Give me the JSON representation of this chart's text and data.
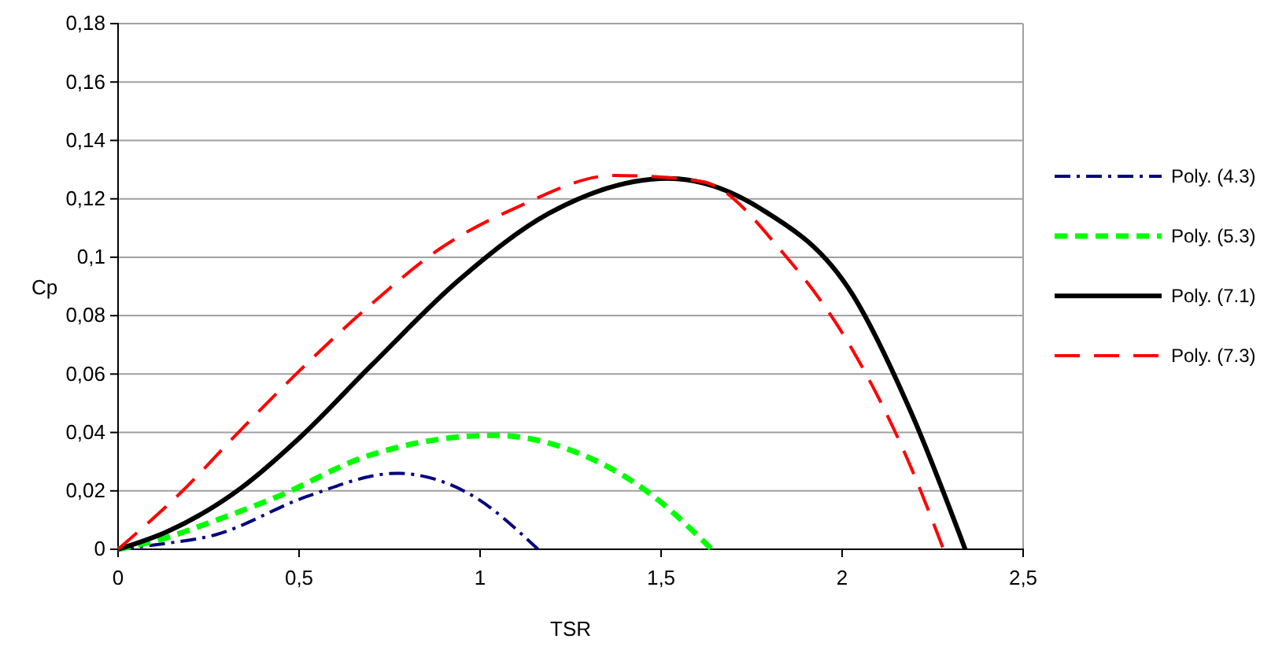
{
  "chart_data": {
    "type": "line",
    "xlabel": "TSR",
    "ylabel": "Cp",
    "xlim": [
      0,
      2.5
    ],
    "xticks": [
      0,
      {
        "value": 0.5,
        "label": "0,5"
      },
      1,
      {
        "value": 1.5,
        "label": "1,5"
      },
      2,
      {
        "value": 2.5,
        "label": "2,5"
      }
    ],
    "ylim": [
      0,
      0.18
    ],
    "yticks": [
      0,
      {
        "value": 0.02,
        "label": "0,02"
      },
      {
        "value": 0.04,
        "label": "0,04"
      },
      {
        "value": 0.06,
        "label": "0,06"
      },
      {
        "value": 0.08,
        "label": "0,08"
      },
      {
        "value": 0.1,
        "label": "0,1"
      },
      {
        "value": 0.12,
        "label": "0,12"
      },
      {
        "value": 0.14,
        "label": "0,14"
      },
      {
        "value": 0.16,
        "label": "0,16"
      },
      {
        "value": 0.18,
        "label": "0,18"
      }
    ],
    "grid": "y",
    "legend": "right",
    "marker": "none",
    "series": [
      {
        "name": "Poly. (4.3)",
        "color": "#000080",
        "line_style": "dashdot",
        "x": [
          0,
          0.1,
          0.27,
          0.52,
          0.77,
          0.97,
          1.16
        ],
        "values": [
          0,
          0.0015,
          0.005,
          0.018,
          0.026,
          0.019,
          0
        ]
      },
      {
        "name": "Poly. (5.3)",
        "color": "#00ff00",
        "line_style": "dashed",
        "x": [
          0,
          0.135,
          0.25,
          0.44,
          0.69,
          1.04,
          1.27,
          1.47,
          1.64
        ],
        "values": [
          0,
          0.004,
          0.009,
          0.018,
          0.032,
          0.039,
          0.033,
          0.019,
          0
        ]
      },
      {
        "name": "Poly. (7.1)",
        "color": "#000000",
        "line_style": "solid",
        "x": [
          0,
          0.135,
          0.34,
          0.5,
          0.7,
          0.94,
          1.19,
          1.52,
          1.77,
          2.03,
          2.19,
          2.34
        ],
        "values": [
          0,
          0.006,
          0.021,
          0.038,
          0.063,
          0.092,
          0.115,
          0.127,
          0.117,
          0.087,
          0.047,
          0
        ]
      },
      {
        "name": "Poly. (7.3)",
        "color": "#ff0000",
        "line_style": "longdash",
        "x": [
          0,
          0.17,
          0.34,
          0.5,
          0.7,
          0.89,
          1.1,
          1.37,
          1.61,
          1.84,
          2.03,
          2.18,
          2.28
        ],
        "values": [
          0,
          0.019,
          0.041,
          0.061,
          0.084,
          0.103,
          0.117,
          0.128,
          0.126,
          0.101,
          0.068,
          0.031,
          0
        ]
      }
    ]
  }
}
